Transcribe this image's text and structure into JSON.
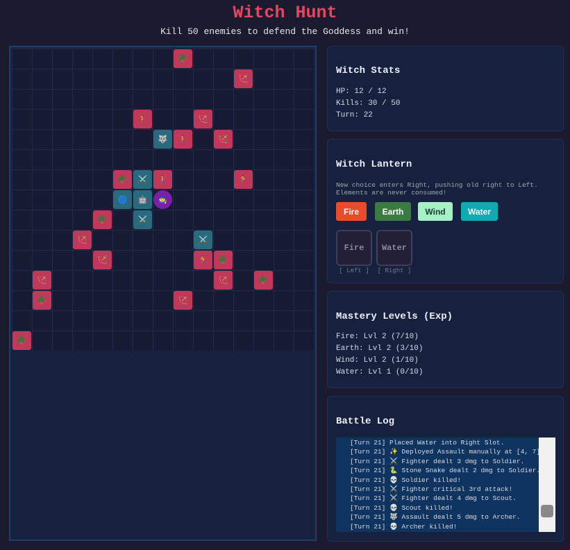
{
  "header": {
    "title": "Witch Hunt",
    "subtitle": "Kill 50 enemies to defend the Goddess and win!"
  },
  "board": {
    "cols": 15,
    "rows": 15,
    "units": [
      {
        "col": 8,
        "row": 0,
        "side": "enemy",
        "icon": "🪖"
      },
      {
        "col": 11,
        "row": 1,
        "side": "enemy",
        "icon": "🏹"
      },
      {
        "col": 6,
        "row": 3,
        "side": "enemy",
        "icon": "🚶"
      },
      {
        "col": 9,
        "row": 3,
        "side": "enemy",
        "icon": "🏹"
      },
      {
        "col": 7,
        "row": 4,
        "side": "ally",
        "icon": "🐺"
      },
      {
        "col": 8,
        "row": 4,
        "side": "enemy",
        "icon": "🚶"
      },
      {
        "col": 10,
        "row": 4,
        "side": "enemy",
        "icon": "🏹"
      },
      {
        "col": 5,
        "row": 6,
        "side": "enemy",
        "icon": "🪖"
      },
      {
        "col": 6,
        "row": 6,
        "side": "ally",
        "icon": "⚔️"
      },
      {
        "col": 7,
        "row": 6,
        "side": "enemy",
        "icon": "🚶"
      },
      {
        "col": 11,
        "row": 6,
        "side": "enemy",
        "icon": "🏃"
      },
      {
        "col": 5,
        "row": 7,
        "side": "ally",
        "icon": "🌀"
      },
      {
        "col": 6,
        "row": 7,
        "side": "ally",
        "icon": "🤖"
      },
      {
        "col": 7,
        "row": 7,
        "side": "witch",
        "icon": "🧙"
      },
      {
        "col": 4,
        "row": 8,
        "side": "enemy",
        "icon": "🪖"
      },
      {
        "col": 6,
        "row": 8,
        "side": "ally",
        "icon": "⚔️"
      },
      {
        "col": 3,
        "row": 9,
        "side": "enemy",
        "icon": "🏹"
      },
      {
        "col": 9,
        "row": 9,
        "side": "ally",
        "icon": "⚔️"
      },
      {
        "col": 4,
        "row": 10,
        "side": "enemy",
        "icon": "🏹"
      },
      {
        "col": 9,
        "row": 10,
        "side": "enemy",
        "icon": "🏃"
      },
      {
        "col": 10,
        "row": 10,
        "side": "enemy",
        "icon": "🪖"
      },
      {
        "col": 1,
        "row": 11,
        "side": "enemy",
        "icon": "🏹"
      },
      {
        "col": 10,
        "row": 11,
        "side": "enemy",
        "icon": "🏹"
      },
      {
        "col": 12,
        "row": 11,
        "side": "enemy",
        "icon": "🪖"
      },
      {
        "col": 1,
        "row": 12,
        "side": "enemy",
        "icon": "🪖"
      },
      {
        "col": 8,
        "row": 12,
        "side": "enemy",
        "icon": "🏹"
      },
      {
        "col": 0,
        "row": 14,
        "side": "enemy",
        "icon": "🪖"
      }
    ]
  },
  "stats": {
    "title": "Witch Stats",
    "lines": [
      "HP: 12 / 12",
      "Kills: 30 / 50",
      "Turn: 22"
    ]
  },
  "lantern": {
    "title": "Witch Lantern",
    "description": "New choice enters Right, pushing old right to Left. Elements are never consumed!",
    "buttons": [
      "Fire",
      "Earth",
      "Wind",
      "Water"
    ],
    "slots": [
      {
        "element": "Fire",
        "label": "[ Left ]"
      },
      {
        "element": "Water",
        "label": "[ Right ]"
      }
    ]
  },
  "mastery": {
    "title": "Mastery Levels (Exp)",
    "lines": [
      "Fire: Lvl 2 (7/10)",
      "Earth: Lvl 2 (3/10)",
      "Wind: Lvl 2 (1/10)",
      "Water: Lvl 1 (0/10)"
    ]
  },
  "log": {
    "title": "Battle Log",
    "lines": [
      "[Turn 21] Placed Water into Right Slot.",
      "[Turn 21] ✨ Deployed Assault manually at [4, 7].",
      "[Turn 21] ⚔️ Fighter dealt 3 dmg to Soldier.",
      "[Turn 21] 🐍 Stone Snake dealt 2 dmg to Soldier.",
      "[Turn 21] 💀 Soldier killed!",
      "[Turn 21] ⚔️ Fighter critical 3rd attack!",
      "[Turn 21] ⚔️ Fighter dealt 4 dmg to Scout.",
      "[Turn 21] 💀 Scout killed!",
      "[Turn 21] 🐺 Assault dealt 5 dmg to Archer.",
      "[Turn 21] 💀 Archer killed!"
    ]
  }
}
